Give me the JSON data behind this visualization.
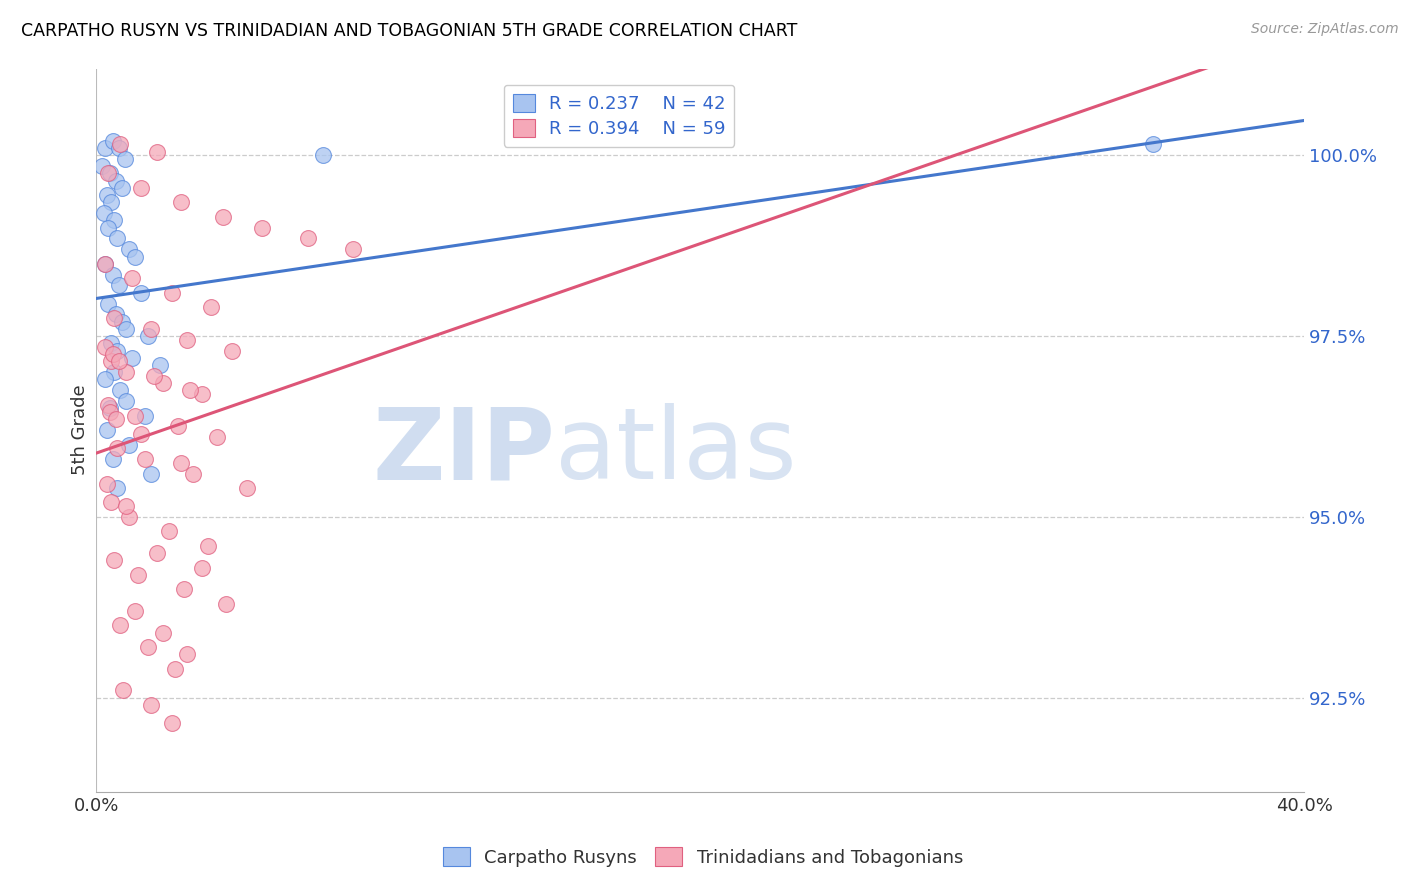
{
  "title": "CARPATHO RUSYN VS TRINIDADIAN AND TOBAGONIAN 5TH GRADE CORRELATION CHART",
  "source": "Source: ZipAtlas.com",
  "ylabel": "5th Grade",
  "ylabel_ticks": [
    "92.5%",
    "95.0%",
    "97.5%",
    "100.0%"
  ],
  "ylabel_values": [
    92.5,
    95.0,
    97.5,
    100.0
  ],
  "xmin": 0.0,
  "xmax": 40.0,
  "ymin": 91.2,
  "ymax": 101.2,
  "legend_blue_r": "R = 0.237",
  "legend_blue_n": "N = 42",
  "legend_pink_r": "R = 0.394",
  "legend_pink_n": "N = 59",
  "blue_color": "#a8c4f0",
  "pink_color": "#f5a8b8",
  "blue_edge_color": "#5588dd",
  "pink_edge_color": "#e06080",
  "blue_line_color": "#4477cc",
  "pink_line_color": "#dd5577",
  "watermark_zip": "ZIP",
  "watermark_atlas": "atlas",
  "blue_scatter": [
    [
      0.3,
      100.1
    ],
    [
      0.55,
      100.2
    ],
    [
      0.75,
      100.1
    ],
    [
      0.95,
      99.95
    ],
    [
      0.2,
      99.85
    ],
    [
      0.45,
      99.75
    ],
    [
      0.65,
      99.65
    ],
    [
      0.85,
      99.55
    ],
    [
      0.35,
      99.45
    ],
    [
      0.5,
      99.35
    ],
    [
      0.25,
      99.2
    ],
    [
      0.6,
      99.1
    ],
    [
      0.4,
      99.0
    ],
    [
      0.7,
      98.85
    ],
    [
      1.1,
      98.7
    ],
    [
      1.3,
      98.6
    ],
    [
      0.3,
      98.5
    ],
    [
      0.55,
      98.35
    ],
    [
      0.75,
      98.2
    ],
    [
      1.5,
      98.1
    ],
    [
      0.4,
      97.95
    ],
    [
      0.65,
      97.8
    ],
    [
      0.85,
      97.7
    ],
    [
      1.0,
      97.6
    ],
    [
      1.7,
      97.5
    ],
    [
      0.5,
      97.4
    ],
    [
      0.7,
      97.3
    ],
    [
      1.2,
      97.2
    ],
    [
      2.1,
      97.1
    ],
    [
      0.6,
      97.0
    ],
    [
      0.3,
      96.9
    ],
    [
      0.8,
      96.75
    ],
    [
      1.0,
      96.6
    ],
    [
      0.45,
      96.5
    ],
    [
      1.6,
      96.4
    ],
    [
      0.35,
      96.2
    ],
    [
      1.1,
      96.0
    ],
    [
      0.55,
      95.8
    ],
    [
      1.8,
      95.6
    ],
    [
      0.7,
      95.4
    ],
    [
      35.0,
      100.15
    ],
    [
      7.5,
      100.0
    ]
  ],
  "pink_scatter": [
    [
      0.8,
      100.15
    ],
    [
      2.0,
      100.05
    ],
    [
      0.4,
      99.75
    ],
    [
      1.5,
      99.55
    ],
    [
      2.8,
      99.35
    ],
    [
      4.2,
      99.15
    ],
    [
      5.5,
      99.0
    ],
    [
      7.0,
      98.85
    ],
    [
      8.5,
      98.7
    ],
    [
      0.3,
      98.5
    ],
    [
      1.2,
      98.3
    ],
    [
      2.5,
      98.1
    ],
    [
      3.8,
      97.9
    ],
    [
      0.6,
      97.75
    ],
    [
      1.8,
      97.6
    ],
    [
      3.0,
      97.45
    ],
    [
      4.5,
      97.3
    ],
    [
      0.5,
      97.15
    ],
    [
      1.0,
      97.0
    ],
    [
      2.2,
      96.85
    ],
    [
      3.5,
      96.7
    ],
    [
      0.4,
      96.55
    ],
    [
      1.3,
      96.4
    ],
    [
      2.7,
      96.25
    ],
    [
      4.0,
      96.1
    ],
    [
      0.7,
      95.95
    ],
    [
      1.6,
      95.8
    ],
    [
      3.2,
      95.6
    ],
    [
      5.0,
      95.4
    ],
    [
      0.5,
      95.2
    ],
    [
      1.1,
      95.0
    ],
    [
      2.4,
      94.8
    ],
    [
      3.7,
      94.6
    ],
    [
      0.6,
      94.4
    ],
    [
      1.4,
      94.2
    ],
    [
      2.9,
      94.0
    ],
    [
      4.3,
      93.8
    ],
    [
      0.8,
      93.5
    ],
    [
      1.7,
      93.2
    ],
    [
      2.6,
      92.9
    ],
    [
      0.3,
      97.35
    ],
    [
      0.55,
      97.25
    ],
    [
      0.75,
      97.15
    ],
    [
      1.9,
      96.95
    ],
    [
      3.1,
      96.75
    ],
    [
      0.45,
      96.45
    ],
    [
      0.65,
      96.35
    ],
    [
      1.5,
      96.15
    ],
    [
      2.8,
      95.75
    ],
    [
      0.35,
      95.45
    ],
    [
      1.0,
      95.15
    ],
    [
      2.0,
      94.5
    ],
    [
      3.5,
      94.3
    ],
    [
      1.3,
      93.7
    ],
    [
      2.2,
      93.4
    ],
    [
      3.0,
      93.1
    ],
    [
      0.9,
      92.6
    ],
    [
      1.8,
      92.4
    ],
    [
      2.5,
      92.15
    ]
  ]
}
